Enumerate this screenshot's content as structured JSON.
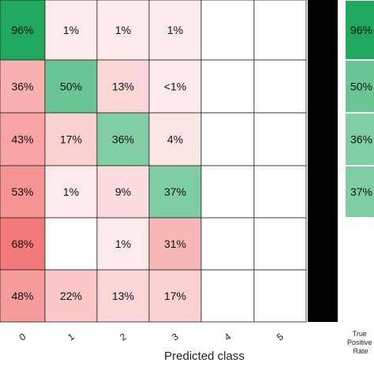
{
  "chart_data": {
    "type": "heatmap",
    "xlabel": "Predicted class",
    "x_ticks": [
      "0",
      "1",
      "2",
      "3",
      "4",
      "5"
    ],
    "rows": [
      {
        "cells": [
          "96%",
          "1%",
          "1%",
          "1%",
          "",
          ""
        ],
        "values": [
          96,
          1,
          1,
          1,
          null,
          null
        ],
        "tpr": "96%",
        "tpr_value": 96
      },
      {
        "cells": [
          "36%",
          "50%",
          "13%",
          "<1%",
          "",
          ""
        ],
        "values": [
          36,
          50,
          13,
          0.5,
          null,
          null
        ],
        "tpr": "50%",
        "tpr_value": 50
      },
      {
        "cells": [
          "43%",
          "17%",
          "36%",
          "4%",
          "",
          ""
        ],
        "values": [
          43,
          17,
          36,
          4,
          null,
          null
        ],
        "tpr": "36%",
        "tpr_value": 36
      },
      {
        "cells": [
          "53%",
          "1%",
          "9%",
          "37%",
          "",
          ""
        ],
        "values": [
          53,
          1,
          9,
          37,
          null,
          null
        ],
        "tpr": "37%",
        "tpr_value": 37
      },
      {
        "cells": [
          "68%",
          "",
          "1%",
          "31%",
          "",
          ""
        ],
        "values": [
          68,
          null,
          1,
          31,
          null,
          null
        ],
        "tpr": "",
        "tpr_value": null
      },
      {
        "cells": [
          "48%",
          "22%",
          "13%",
          "17%",
          "",
          ""
        ],
        "values": [
          48,
          22,
          13,
          17,
          null,
          null
        ],
        "tpr": "",
        "tpr_value": null
      }
    ],
    "side_label": "True Positive Rate",
    "colors": {
      "correct": "#1aa55a",
      "incorrect": "#f04444",
      "grid": "#222222",
      "separator": "#000000"
    }
  }
}
